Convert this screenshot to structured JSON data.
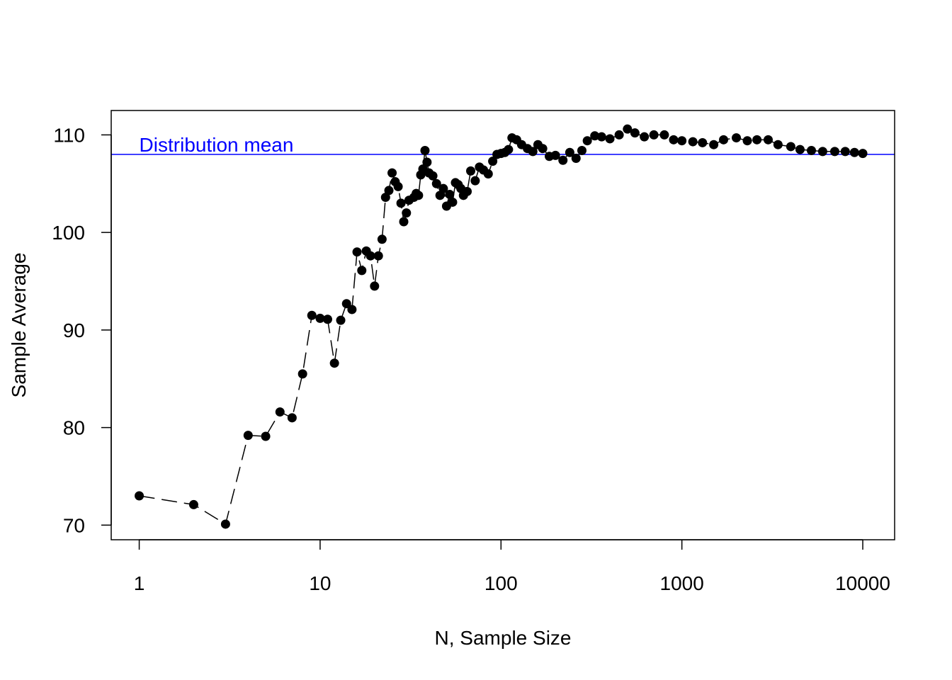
{
  "chart_data": {
    "type": "scatter",
    "title": "",
    "xlabel": "N, Sample Size",
    "ylabel": "Sample Average",
    "x_scale": "log10",
    "xlim": [
      0.7,
      15000
    ],
    "ylim": [
      68.5,
      112.5
    ],
    "x_ticks": [
      1,
      10,
      100,
      1000,
      10000
    ],
    "x_tick_labels": [
      "1",
      "10",
      "100",
      "1000",
      "10000"
    ],
    "y_ticks": [
      70,
      80,
      90,
      100,
      110
    ],
    "y_tick_labels": [
      "70",
      "80",
      "90",
      "100",
      "110"
    ],
    "grid": false,
    "reference_line": {
      "label": "Distribution mean",
      "value": 108,
      "color": "#0000ff"
    },
    "series": [
      {
        "name": "Sample Average",
        "color": "#000000",
        "marker": "filled-circle",
        "line_style": "dashed",
        "points": [
          [
            1,
            73.0
          ],
          [
            2,
            72.1
          ],
          [
            3,
            70.1
          ],
          [
            4,
            79.2
          ],
          [
            5,
            79.1
          ],
          [
            6,
            81.6
          ],
          [
            7,
            81.0
          ],
          [
            8,
            85.5
          ],
          [
            9,
            91.5
          ],
          [
            10,
            91.2
          ],
          [
            11,
            91.1
          ],
          [
            12,
            86.6
          ],
          [
            13,
            91.0
          ],
          [
            14,
            92.7
          ],
          [
            15,
            92.1
          ],
          [
            16,
            98.0
          ],
          [
            17,
            96.1
          ],
          [
            18,
            98.1
          ],
          [
            19,
            97.6
          ],
          [
            20,
            94.5
          ],
          [
            21,
            97.6
          ],
          [
            22,
            99.3
          ],
          [
            23,
            103.6
          ],
          [
            24,
            104.3
          ],
          [
            25,
            106.1
          ],
          [
            26,
            105.2
          ],
          [
            27,
            104.7
          ],
          [
            28,
            103.0
          ],
          [
            29,
            101.1
          ],
          [
            30,
            102.0
          ],
          [
            31,
            103.3
          ],
          [
            33,
            103.6
          ],
          [
            34,
            104.0
          ],
          [
            35,
            103.8
          ],
          [
            36,
            105.9
          ],
          [
            37,
            106.5
          ],
          [
            38,
            108.4
          ],
          [
            39,
            107.2
          ],
          [
            40,
            106.1
          ],
          [
            42,
            105.8
          ],
          [
            44,
            105.0
          ],
          [
            46,
            103.8
          ],
          [
            48,
            104.5
          ],
          [
            50,
            102.7
          ],
          [
            52,
            103.9
          ],
          [
            54,
            103.1
          ],
          [
            56,
            105.1
          ],
          [
            58,
            104.9
          ],
          [
            60,
            104.5
          ],
          [
            62,
            103.8
          ],
          [
            65,
            104.2
          ],
          [
            68,
            106.3
          ],
          [
            72,
            105.3
          ],
          [
            76,
            106.7
          ],
          [
            80,
            106.4
          ],
          [
            85,
            106.0
          ],
          [
            90,
            107.3
          ],
          [
            95,
            108.0
          ],
          [
            100,
            108.1
          ],
          [
            105,
            108.2
          ],
          [
            110,
            108.5
          ],
          [
            115,
            109.7
          ],
          [
            122,
            109.5
          ],
          [
            130,
            109.0
          ],
          [
            140,
            108.6
          ],
          [
            150,
            108.3
          ],
          [
            160,
            109.0
          ],
          [
            170,
            108.6
          ],
          [
            185,
            107.8
          ],
          [
            200,
            107.9
          ],
          [
            220,
            107.4
          ],
          [
            240,
            108.2
          ],
          [
            260,
            107.6
          ],
          [
            280,
            108.4
          ],
          [
            300,
            109.4
          ],
          [
            330,
            109.9
          ],
          [
            360,
            109.8
          ],
          [
            400,
            109.6
          ],
          [
            450,
            110.0
          ],
          [
            500,
            110.6
          ],
          [
            550,
            110.2
          ],
          [
            620,
            109.8
          ],
          [
            700,
            110.0
          ],
          [
            800,
            110.0
          ],
          [
            900,
            109.5
          ],
          [
            1000,
            109.4
          ],
          [
            1150,
            109.3
          ],
          [
            1300,
            109.2
          ],
          [
            1500,
            109.0
          ],
          [
            1700,
            109.5
          ],
          [
            2000,
            109.7
          ],
          [
            2300,
            109.4
          ],
          [
            2600,
            109.5
          ],
          [
            3000,
            109.5
          ],
          [
            3400,
            109.0
          ],
          [
            4000,
            108.8
          ],
          [
            4500,
            108.5
          ],
          [
            5200,
            108.4
          ],
          [
            6000,
            108.3
          ],
          [
            7000,
            108.3
          ],
          [
            8000,
            108.3
          ],
          [
            9000,
            108.2
          ],
          [
            10000,
            108.1
          ]
        ]
      }
    ]
  }
}
